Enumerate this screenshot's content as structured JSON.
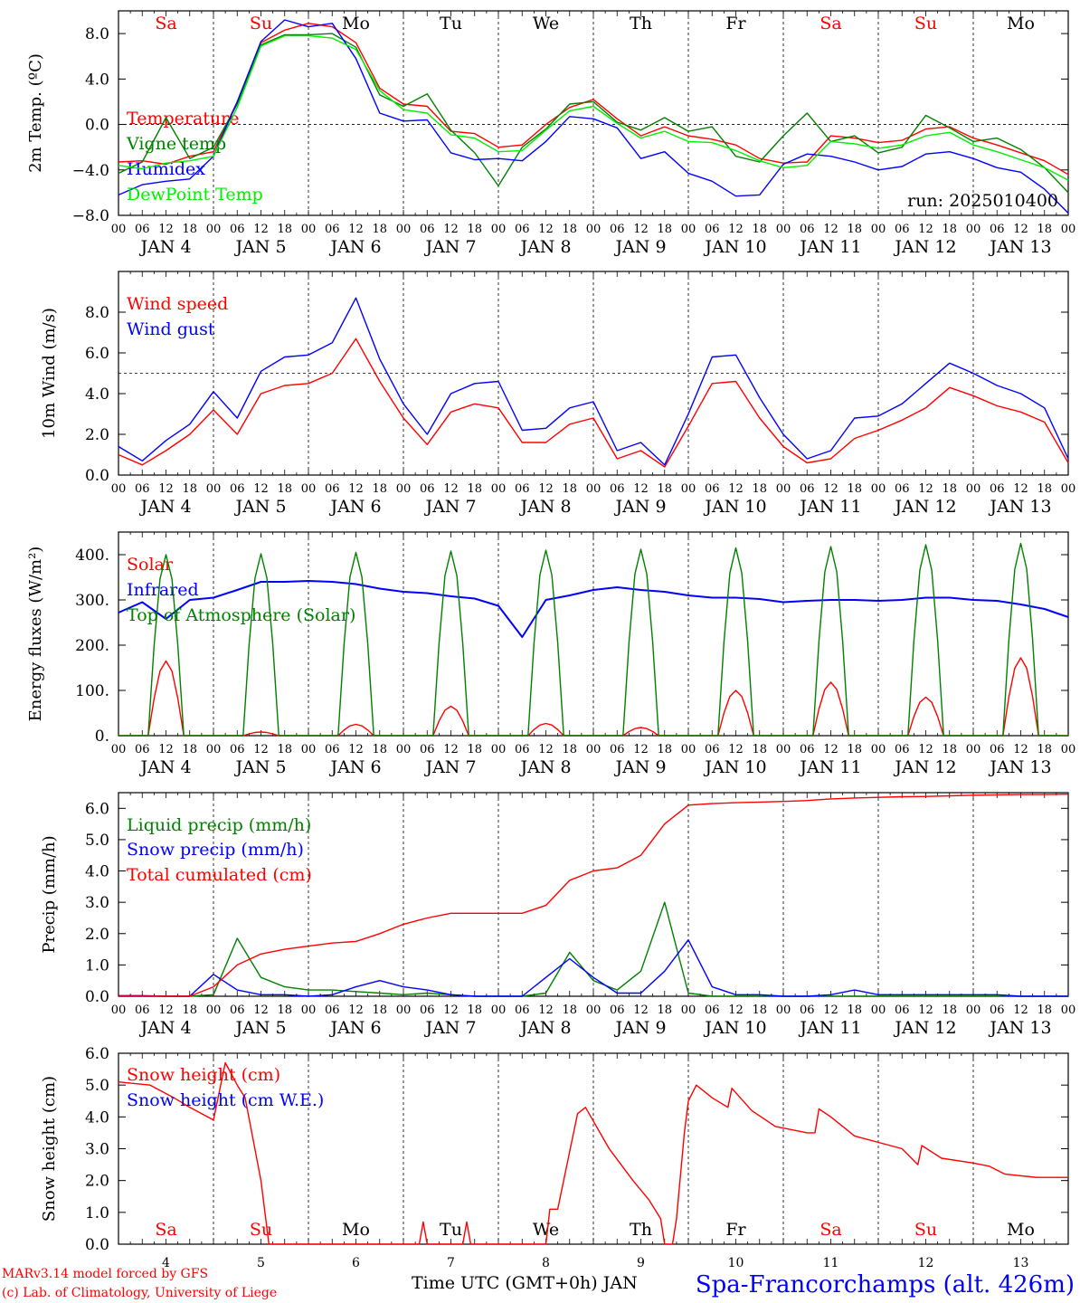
{
  "meta": {
    "run_label": "run: 2025010400",
    "xaxis_title": "Time UTC (GMT+0h) JAN",
    "station": "Spa-Francorchamps (alt. 426m)",
    "credit_1": "MARv3.14 model forced by GFS",
    "credit_2": "(c) Lab. of Climatology, University of Liege"
  },
  "time_axis": {
    "hour_labels": [
      "00",
      "06",
      "12",
      "18"
    ],
    "date_labels": [
      "JAN  4",
      "JAN  5",
      "JAN  6",
      "JAN  7",
      "JAN  8",
      "JAN  9",
      "JAN 10",
      "JAN 11",
      "JAN 12",
      "JAN 13"
    ],
    "day_numbers": [
      "4",
      "5",
      "6",
      "7",
      "8",
      "9",
      "10",
      "11",
      "12",
      "13"
    ],
    "weekdays": [
      "Sa",
      "Su",
      "Mo",
      "Tu",
      "We",
      "Th",
      "Fr",
      "Sa",
      "Su",
      "Mo"
    ],
    "weekday_colors": [
      "#ff0000",
      "#ff0000",
      "#000000",
      "#000000",
      "#000000",
      "#000000",
      "#000000",
      "#ff0000",
      "#ff0000",
      "#000000"
    ]
  },
  "chart_data": [
    {
      "type": "line",
      "ylabel": "2m Temp. (ºC)",
      "ylim": [
        -8,
        10
      ],
      "yticks": [
        -8,
        -4,
        0,
        4,
        8
      ],
      "ytick_labels": [
        "−8.0",
        "−4.0",
        "0.0",
        "4.0",
        "8.0"
      ],
      "hline": 0,
      "x": [
        0,
        6,
        12,
        18,
        24,
        30,
        36,
        42,
        48,
        54,
        60,
        66,
        72,
        78,
        84,
        90,
        96,
        102,
        108,
        114,
        120,
        126,
        132,
        138,
        144,
        150,
        156,
        162,
        168,
        174,
        180,
        186,
        192,
        198,
        204,
        210,
        216,
        222,
        228,
        234,
        240
      ],
      "series": [
        {
          "name": "Temperature",
          "color": "#ff0000",
          "values": [
            -3.3,
            -3.2,
            -3.5,
            -2.8,
            -2.4,
            2.0,
            7.2,
            8.3,
            8.9,
            8.6,
            7.2,
            3.2,
            1.8,
            1.6,
            -0.6,
            -0.8,
            -2.0,
            -1.8,
            0.0,
            1.5,
            2.2,
            0.5,
            -1.0,
            -0.2,
            -1.0,
            -1.3,
            -1.8,
            -3.0,
            -3.4,
            -3.3,
            -1.0,
            -1.2,
            -1.6,
            -1.4,
            -0.4,
            -0.2,
            -1.2,
            -1.8,
            -2.5,
            -3.2,
            -4.4
          ]
        },
        {
          "name": "Vigne temp",
          "color": "#008000",
          "values": [
            -4.3,
            -3.3,
            0.6,
            -3.0,
            -2.0,
            1.8,
            7.0,
            7.9,
            7.9,
            8.0,
            6.8,
            2.6,
            1.6,
            2.7,
            -0.5,
            -2.5,
            -5.4,
            -2.0,
            -0.4,
            1.8,
            2.0,
            0.2,
            -0.5,
            0.6,
            -0.6,
            -0.2,
            -2.8,
            -3.3,
            -1.0,
            1.0,
            -1.5,
            -1.0,
            -2.5,
            -2.0,
            0.8,
            -0.3,
            -1.5,
            -1.2,
            -2.2,
            -3.8,
            -6.0
          ]
        },
        {
          "name": "Humidex",
          "color": "#0000ff",
          "values": [
            -6.2,
            -5.3,
            -5.0,
            -4.8,
            -2.8,
            2.0,
            7.3,
            9.2,
            8.6,
            8.9,
            5.8,
            1.0,
            0.3,
            0.4,
            -2.5,
            -3.1,
            -3.0,
            -3.2,
            -1.5,
            0.7,
            0.5,
            -0.3,
            -3.0,
            -2.4,
            -4.3,
            -5.0,
            -6.3,
            -6.2,
            -3.5,
            -2.6,
            -2.8,
            -3.3,
            -4.0,
            -3.7,
            -2.6,
            -2.4,
            -3.0,
            -3.8,
            -4.2,
            -5.7,
            -7.8
          ]
        },
        {
          "name": "DewPoint Temp",
          "color": "#00ee00",
          "values": [
            -3.6,
            -3.9,
            -3.4,
            -3.2,
            -2.8,
            1.5,
            6.9,
            7.8,
            7.8,
            7.6,
            6.6,
            3.0,
            1.3,
            1.0,
            -0.9,
            -1.2,
            -2.4,
            -2.3,
            -0.5,
            1.2,
            1.6,
            0.1,
            -1.2,
            -0.6,
            -1.5,
            -1.6,
            -2.3,
            -3.2,
            -3.8,
            -3.6,
            -1.5,
            -1.7,
            -2.1,
            -1.8,
            -1.0,
            -0.7,
            -1.8,
            -2.4,
            -3.1,
            -3.8,
            -4.9
          ]
        }
      ]
    },
    {
      "type": "line",
      "ylabel": "10m Wind (m/s)",
      "ylim": [
        0,
        10
      ],
      "yticks": [
        0,
        2,
        4,
        6,
        8
      ],
      "ytick_labels": [
        "0.0",
        "2.0",
        "4.0",
        "6.0",
        "8.0"
      ],
      "hline": 5,
      "x": [
        0,
        6,
        12,
        18,
        24,
        30,
        36,
        42,
        48,
        54,
        60,
        66,
        72,
        78,
        84,
        90,
        96,
        102,
        108,
        114,
        120,
        126,
        132,
        138,
        144,
        150,
        156,
        162,
        168,
        174,
        180,
        186,
        192,
        198,
        204,
        210,
        216,
        222,
        228,
        234,
        240
      ],
      "series": [
        {
          "name": "Wind speed",
          "color": "#ff0000",
          "values": [
            1.0,
            0.5,
            1.2,
            2.0,
            3.2,
            2.0,
            4.0,
            4.4,
            4.5,
            5.0,
            6.7,
            4.6,
            2.8,
            1.5,
            3.1,
            3.5,
            3.3,
            1.6,
            1.6,
            2.5,
            2.8,
            0.8,
            1.2,
            0.4,
            2.4,
            4.5,
            4.6,
            2.8,
            1.4,
            0.6,
            0.8,
            1.8,
            2.2,
            2.7,
            3.3,
            4.3,
            3.9,
            3.4,
            3.1,
            2.6,
            0.6
          ]
        },
        {
          "name": "Wind gust",
          "color": "#0000ff",
          "values": [
            1.4,
            0.7,
            1.7,
            2.5,
            4.1,
            2.8,
            5.1,
            5.8,
            5.9,
            6.5,
            8.7,
            5.7,
            3.5,
            2.0,
            4.0,
            4.5,
            4.6,
            2.2,
            2.3,
            3.3,
            3.6,
            1.2,
            1.6,
            0.5,
            3.0,
            5.8,
            5.9,
            3.8,
            2.0,
            0.8,
            1.2,
            2.8,
            2.9,
            3.5,
            4.5,
            5.5,
            5.0,
            4.4,
            4.0,
            3.3,
            0.8
          ]
        }
      ]
    },
    {
      "type": "line",
      "ylabel": "Energy fluxes (W/m²)",
      "ylim": [
        0,
        450
      ],
      "yticks": [
        0,
        100,
        200,
        300,
        400
      ],
      "ytick_labels": [
        "0.",
        "100.",
        "200.",
        "300.",
        "400."
      ],
      "x": [
        0,
        6,
        12,
        18,
        24,
        30,
        36,
        42,
        48,
        54,
        60,
        66,
        72,
        78,
        84,
        90,
        96,
        102,
        108,
        114,
        120,
        126,
        132,
        138,
        144,
        150,
        156,
        162,
        168,
        174,
        180,
        186,
        192,
        198,
        204,
        210,
        216,
        222,
        228,
        234,
        240
      ],
      "series": [
        {
          "name": "Solar",
          "color": "#ff0000",
          "daily_peaks": [
            165,
            8,
            25,
            65,
            27,
            18,
            100,
            118,
            85,
            172
          ]
        },
        {
          "name": "Infrared",
          "color": "#0000ff",
          "values": [
            272,
            295,
            258,
            300,
            305,
            322,
            340,
            340,
            342,
            340,
            335,
            325,
            318,
            315,
            308,
            303,
            287,
            218,
            300,
            310,
            322,
            328,
            322,
            318,
            310,
            305,
            305,
            302,
            295,
            298,
            300,
            300,
            298,
            300,
            305,
            305,
            300,
            298,
            290,
            280,
            262
          ]
        },
        {
          "name": "Top of Atmosphere (Solar)",
          "color": "#008000",
          "daily_peaks": [
            400,
            402,
            405,
            408,
            410,
            412,
            415,
            418,
            422,
            425
          ]
        }
      ]
    },
    {
      "type": "line",
      "ylabel": "Precip (mm/h)",
      "ylim": [
        0,
        6.5
      ],
      "yticks": [
        0,
        1,
        2,
        3,
        4,
        5,
        6
      ],
      "ytick_labels": [
        "0.0",
        "1.0",
        "2.0",
        "3.0",
        "4.0",
        "5.0",
        "6.0"
      ],
      "x": [
        0,
        6,
        12,
        18,
        24,
        30,
        36,
        42,
        48,
        54,
        60,
        66,
        72,
        78,
        84,
        90,
        96,
        102,
        108,
        114,
        120,
        126,
        132,
        138,
        144,
        150,
        156,
        162,
        168,
        174,
        180,
        186,
        192,
        198,
        204,
        210,
        216,
        222,
        228,
        234,
        240
      ],
      "series": [
        {
          "name": "Liquid precip (mm/h)",
          "color": "#008000",
          "values": [
            0,
            0,
            0,
            0,
            0.05,
            1.85,
            0.6,
            0.3,
            0.2,
            0.2,
            0.15,
            0.1,
            0.05,
            0.1,
            0.05,
            0,
            0,
            0,
            0.1,
            1.4,
            0.5,
            0.2,
            0.8,
            3.0,
            0.1,
            0,
            0,
            0,
            0,
            0,
            0,
            0,
            0,
            0,
            0,
            0,
            0,
            0,
            0,
            0,
            0
          ]
        },
        {
          "name": "Snow precip (mm/h)",
          "color": "#0000ff",
          "values": [
            0.02,
            0.02,
            0,
            0,
            0.7,
            0.2,
            0.05,
            0.05,
            0,
            0.05,
            0.3,
            0.5,
            0.3,
            0.2,
            0.05,
            0,
            0,
            0,
            0.6,
            1.2,
            0.6,
            0.1,
            0.1,
            0.8,
            1.8,
            0.3,
            0.05,
            0.05,
            0,
            0,
            0.05,
            0.2,
            0.05,
            0.05,
            0.05,
            0.05,
            0.05,
            0.05,
            0,
            0,
            0
          ]
        },
        {
          "name": "Total cumulated (cm)",
          "color": "#ff0000",
          "values": [
            0,
            0,
            0,
            0,
            0.3,
            1.0,
            1.35,
            1.5,
            1.6,
            1.7,
            1.75,
            2.0,
            2.3,
            2.5,
            2.65,
            2.65,
            2.65,
            2.65,
            2.9,
            3.7,
            4.0,
            4.1,
            4.5,
            5.5,
            6.1,
            6.15,
            6.18,
            6.2,
            6.22,
            6.25,
            6.3,
            6.33,
            6.35,
            6.37,
            6.38,
            6.4,
            6.42,
            6.43,
            6.44,
            6.44,
            6.45
          ]
        }
      ]
    },
    {
      "type": "line",
      "ylabel": "Snow height (cm)",
      "ylim": [
        0,
        6
      ],
      "yticks": [
        0,
        1,
        2,
        3,
        4,
        5,
        6
      ],
      "ytick_labels": [
        "0.0",
        "1.0",
        "2.0",
        "3.0",
        "4.0",
        "5.0",
        "6.0"
      ],
      "series": [
        {
          "name": "Snow height (cm)",
          "color": "#ff0000",
          "points": [
            [
              0,
              5.1
            ],
            [
              8,
              5.0
            ],
            [
              14,
              4.6
            ],
            [
              18,
              4.3
            ],
            [
              24,
              3.9
            ],
            [
              27,
              5.7
            ],
            [
              30,
              5.0
            ],
            [
              32,
              4.6
            ],
            [
              36,
              2.0
            ],
            [
              38,
              0.0
            ],
            [
              76,
              0.0
            ],
            [
              77,
              0.7
            ],
            [
              78,
              0.0
            ],
            [
              87,
              0.0
            ],
            [
              88,
              0.7
            ],
            [
              89,
              0.0
            ],
            [
              108,
              0.0
            ],
            [
              109,
              1.1
            ],
            [
              111,
              1.1
            ],
            [
              116,
              4.1
            ],
            [
              118,
              4.3
            ],
            [
              124,
              3.0
            ],
            [
              130,
              2.0
            ],
            [
              134,
              1.4
            ],
            [
              137,
              0.8
            ],
            [
              138,
              0.0
            ],
            [
              140,
              0.0
            ],
            [
              141,
              0.8
            ],
            [
              143,
              3.5
            ],
            [
              144,
              4.5
            ],
            [
              146,
              5.0
            ],
            [
              150,
              4.6
            ],
            [
              154,
              4.3
            ],
            [
              155,
              4.9
            ],
            [
              160,
              4.2
            ],
            [
              166,
              3.7
            ],
            [
              174,
              3.5
            ],
            [
              176,
              3.5
            ],
            [
              177,
              4.25
            ],
            [
              180,
              4.0
            ],
            [
              186,
              3.4
            ],
            [
              198,
              3.0
            ],
            [
              202,
              2.5
            ],
            [
              203,
              3.1
            ],
            [
              208,
              2.7
            ],
            [
              216,
              2.55
            ],
            [
              220,
              2.45
            ],
            [
              224,
              2.2
            ],
            [
              232,
              2.1
            ],
            [
              240,
              2.1
            ]
          ]
        },
        {
          "name": "Snow height (cm W.E.)",
          "color": "#0000ff",
          "points": []
        }
      ]
    }
  ]
}
